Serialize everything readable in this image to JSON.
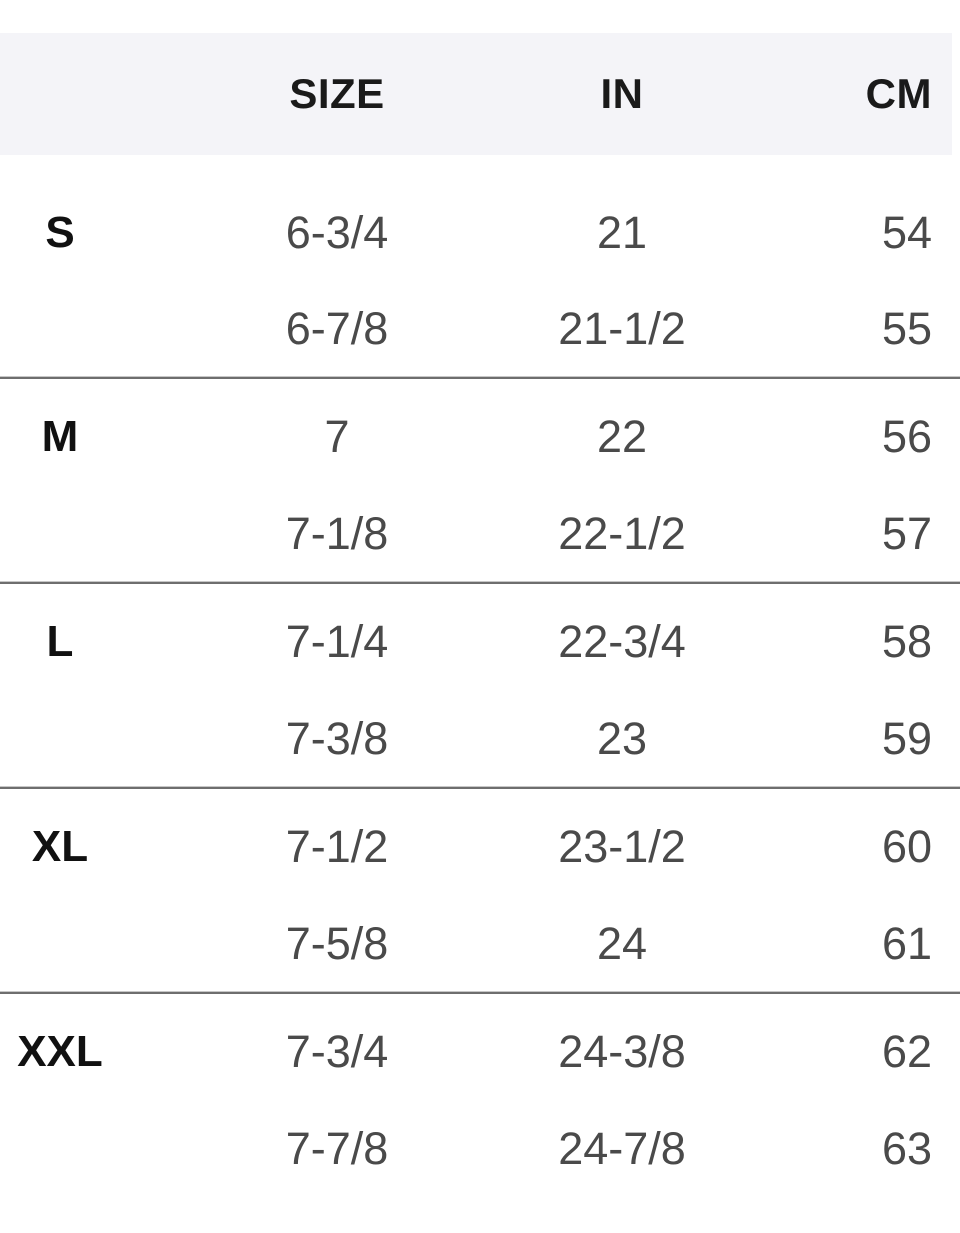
{
  "colors": {
    "header_bg": "#f4f4f8",
    "divider": "#6e6e6e",
    "heading_text": "#1a1a1a",
    "value_text": "#4a4a4a"
  },
  "table": {
    "columns": {
      "label": "",
      "size": "SIZE",
      "in": "IN",
      "cm": "CM"
    },
    "groups": [
      {
        "label": "S",
        "rows": [
          [
            "6-3/4",
            "21",
            "54"
          ],
          [
            "6-7/8",
            "21-1/2",
            "55"
          ]
        ]
      },
      {
        "label": "M",
        "rows": [
          [
            "7",
            "22",
            "56"
          ],
          [
            "7-1/8",
            "22-1/2",
            "57"
          ]
        ]
      },
      {
        "label": "L",
        "rows": [
          [
            "7-1/4",
            "22-3/4",
            "58"
          ],
          [
            "7-3/8",
            "23",
            "59"
          ]
        ]
      },
      {
        "label": "XL",
        "rows": [
          [
            "7-1/2",
            "23-1/2",
            "60"
          ],
          [
            "7-5/8",
            "24",
            "61"
          ]
        ]
      },
      {
        "label": "XXL",
        "rows": [
          [
            "7-3/4",
            "24-3/8",
            "62"
          ],
          [
            "7-7/8",
            "24-7/8",
            "63"
          ]
        ]
      }
    ]
  }
}
